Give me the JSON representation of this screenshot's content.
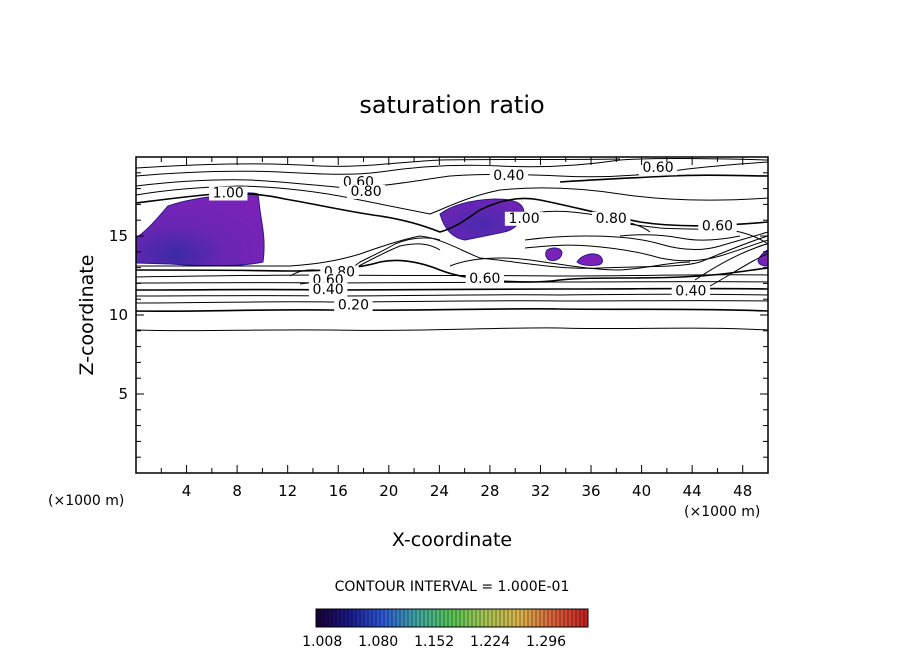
{
  "chart_data": {
    "type": "contour",
    "title": "saturation ratio",
    "xlabel": "X-coordinate",
    "ylabel": "Z-coordinate",
    "x_unit": "(×1000 m)",
    "z_unit": "(×1000 m)",
    "xlim": [
      0,
      50
    ],
    "ylim": [
      0,
      20
    ],
    "x_ticks": [
      "4",
      "8",
      "12",
      "16",
      "20",
      "24",
      "28",
      "32",
      "36",
      "40",
      "44",
      "48"
    ],
    "y_ticks": [
      "5",
      "10",
      "15"
    ],
    "contour_interval_text": "CONTOUR INTERVAL = 1.000E-01",
    "contour_labels": [
      {
        "text": "0.60",
        "x": 41.3,
        "z": 19.1
      },
      {
        "text": "0.40",
        "x": 29.5,
        "z": 18.6
      },
      {
        "text": "0.60",
        "x": 17.6,
        "z": 18.2
      },
      {
        "text": "0.80",
        "x": 18.2,
        "z": 17.6
      },
      {
        "text": "1.00",
        "x": 7.3,
        "z": 17.5
      },
      {
        "text": "1.00",
        "x": 30.7,
        "z": 15.9
      },
      {
        "text": "0.80",
        "x": 37.6,
        "z": 15.9
      },
      {
        "text": "0.60",
        "x": 46.0,
        "z": 15.4
      },
      {
        "text": "0.80",
        "x": 16.1,
        "z": 12.5
      },
      {
        "text": "0.60",
        "x": 15.2,
        "z": 12.0
      },
      {
        "text": "0.40",
        "x": 15.2,
        "z": 11.4
      },
      {
        "text": "0.60",
        "x": 27.6,
        "z": 12.1
      },
      {
        "text": "0.40",
        "x": 43.9,
        "z": 11.3
      },
      {
        "text": "0.20",
        "x": 17.2,
        "z": 10.4
      }
    ],
    "colorbar": {
      "ticks": [
        "1.008",
        "1.080",
        "1.152",
        "1.224",
        "1.296"
      ],
      "range": [
        1.0,
        1.35
      ],
      "colors": [
        "#1a0033",
        "#1a1a8c",
        "#2e5ad6",
        "#3fa8a0",
        "#55c455",
        "#a8c455",
        "#d9b44a",
        "#d9603a",
        "#c21e1e"
      ]
    },
    "supersaturated_fill": "#7a22b8",
    "supersaturated_edge": "#2a1a8a"
  }
}
